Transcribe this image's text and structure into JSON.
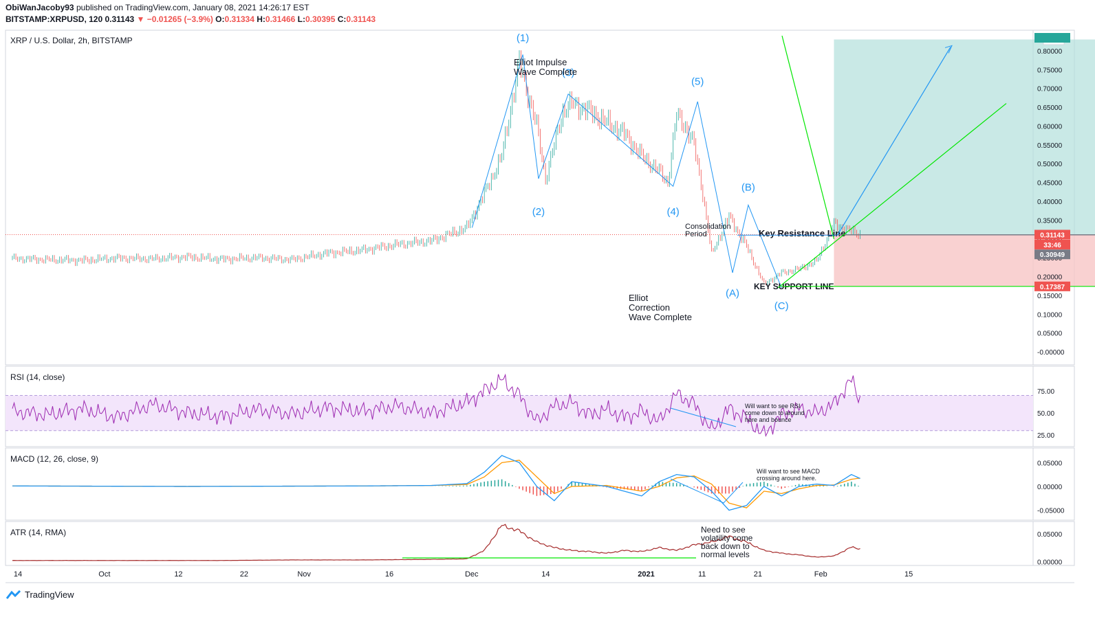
{
  "header": {
    "author": "ObiWanJacoby93",
    "published_text": "published on TradingView.com, January 08, 2021 14:26:17 EST",
    "symbol": "BITSTAMP:XRPUSD, 120",
    "last": "0.31143",
    "change": "▼ −0.01265 (−3.9%)",
    "o_label": "O:",
    "o": "0.31334",
    "h_label": "H:",
    "h": "0.31466",
    "l_label": "L:",
    "l": "0.30395",
    "c_label": "C:",
    "c": "0.31143"
  },
  "brand": {
    "name": "TradingView",
    "icon": "tradingview-logo-icon"
  },
  "colors": {
    "candle_up": "#26a69a",
    "candle_down": "#ef5350",
    "wave": "#2196f3",
    "green_line": "#00e600",
    "target_zone": "#b2dfdb",
    "stop_zone": "#f8c6c6",
    "rsi": "#9c27b0",
    "rsi_band": "#f3e5fb",
    "macd": "#2196f3",
    "signal": "#ff9800",
    "atr": "#a52a2a"
  },
  "time_axis": [
    "14",
    "Oct",
    "12",
    "22",
    "Nov",
    "16",
    "Dec",
    "14",
    "2021",
    "11",
    "21",
    "Feb",
    "15"
  ],
  "chart_data": [
    {
      "type": "line",
      "title": "XRP / U.S. Dollar, 2h, BITSTAMP",
      "y_unit": "USD",
      "ylim": [
        -0.02,
        0.84
      ],
      "y_ticks": [
        "0.80000",
        "0.75000",
        "0.70000",
        "0.65000",
        "0.60000",
        "0.55000",
        "0.50000",
        "0.45000",
        "0.40000",
        "0.35000",
        "0.30000",
        "0.25000",
        "0.20000",
        "0.15000",
        "0.10000",
        "0.05000",
        "-0.00000"
      ],
      "x_index": [
        0,
        20,
        40,
        60,
        80,
        100,
        120,
        140,
        160,
        180,
        200,
        220,
        240,
        260,
        270,
        280,
        290,
        300,
        305,
        310,
        315,
        320,
        330,
        340,
        350,
        360,
        370,
        375,
        380,
        385,
        390,
        395,
        400,
        410,
        420,
        430,
        440,
        450,
        460,
        470,
        480,
        486
      ],
      "close": [
        0.248,
        0.245,
        0.243,
        0.249,
        0.247,
        0.252,
        0.246,
        0.25,
        0.245,
        0.262,
        0.27,
        0.285,
        0.295,
        0.33,
        0.42,
        0.52,
        0.77,
        0.6,
        0.46,
        0.55,
        0.64,
        0.66,
        0.64,
        0.61,
        0.58,
        0.52,
        0.48,
        0.45,
        0.63,
        0.6,
        0.55,
        0.42,
        0.26,
        0.36,
        0.28,
        0.18,
        0.21,
        0.22,
        0.24,
        0.34,
        0.32,
        0.311
      ],
      "price_labels": [
        "0.31143",
        "33:46",
        "0.30949",
        "0.17387"
      ],
      "wave_labels": [
        "(1)",
        "(2)",
        "(3)",
        "(4)",
        "(5)",
        "(A)",
        "(B)",
        "(C)"
      ],
      "annotations": {
        "impulse": [
          "Elliot Impulse",
          "Wave Complete"
        ],
        "correction": [
          "Elliot",
          "Correction",
          "Wave Complete"
        ],
        "consolidation": [
          "Consolidation",
          "Period"
        ],
        "resistance": "Key Resistance Line",
        "support": "KEY SUPPORT LINE"
      },
      "levels": {
        "resistance": 0.311,
        "support": 0.17387,
        "target_top": 0.83
      }
    },
    {
      "type": "line",
      "title": "RSI (14, close)",
      "ylim": [
        15,
        100
      ],
      "y_ticks": [
        "75.00",
        "50.00",
        "25.00"
      ],
      "band": [
        30,
        70
      ],
      "x_index": [
        0,
        20,
        40,
        60,
        80,
        100,
        120,
        140,
        160,
        180,
        200,
        220,
        240,
        260,
        270,
        280,
        290,
        300,
        310,
        320,
        330,
        340,
        350,
        360,
        370,
        380,
        390,
        400,
        410,
        420,
        430,
        440,
        450,
        460,
        470,
        480,
        486
      ],
      "values": [
        52,
        48,
        55,
        45,
        60,
        50,
        46,
        54,
        49,
        56,
        52,
        58,
        50,
        62,
        75,
        88,
        70,
        40,
        58,
        62,
        48,
        54,
        45,
        52,
        40,
        72,
        60,
        30,
        55,
        44,
        25,
        48,
        55,
        50,
        60,
        88,
        60
      ],
      "annotation": [
        "Will want to see RSI",
        "come down to around",
        "here and bounce"
      ]
    },
    {
      "type": "line",
      "title": "MACD (12, 26, close, 9)",
      "ylim": [
        -0.065,
        0.075
      ],
      "y_ticks": [
        "0.05000",
        "0.00000",
        "-0.05000"
      ],
      "x_index": [
        0,
        100,
        200,
        240,
        260,
        270,
        280,
        290,
        300,
        310,
        320,
        340,
        360,
        370,
        380,
        390,
        400,
        410,
        420,
        430,
        440,
        450,
        460,
        470,
        480,
        486
      ],
      "macd": [
        0.001,
        0.0,
        0.001,
        0.002,
        0.006,
        0.03,
        0.065,
        0.05,
        0.0,
        -0.03,
        0.01,
        0.0,
        -0.02,
        0.01,
        0.025,
        0.02,
        -0.01,
        -0.05,
        -0.04,
        0.0,
        -0.02,
        0.0,
        0.005,
        0.002,
        0.025,
        0.015
      ],
      "signal": [
        0.001,
        0.0,
        0.001,
        0.002,
        0.004,
        0.02,
        0.05,
        0.055,
        0.02,
        -0.015,
        0.0,
        0.002,
        -0.01,
        0.0,
        0.018,
        0.022,
        0.005,
        -0.035,
        -0.045,
        -0.01,
        -0.015,
        -0.005,
        0.002,
        0.003,
        0.015,
        0.018
      ],
      "annotation": [
        "Will want to see MACD",
        "crossing around here."
      ]
    },
    {
      "type": "line",
      "title": "ATR (14, RMA)",
      "ylim": [
        -0.002,
        0.067
      ],
      "y_ticks": [
        "0.05000",
        "0.00000"
      ],
      "x_index": [
        0,
        40,
        80,
        120,
        160,
        200,
        240,
        260,
        270,
        280,
        290,
        300,
        310,
        320,
        330,
        340,
        350,
        360,
        370,
        380,
        390,
        400,
        410,
        420,
        430,
        440,
        450,
        460,
        470,
        480,
        486
      ],
      "values": [
        0.002,
        0.002,
        0.002,
        0.002,
        0.003,
        0.003,
        0.004,
        0.005,
        0.02,
        0.065,
        0.055,
        0.035,
        0.025,
        0.02,
        0.018,
        0.015,
        0.02,
        0.018,
        0.025,
        0.02,
        0.03,
        0.035,
        0.045,
        0.035,
        0.02,
        0.015,
        0.012,
        0.008,
        0.01,
        0.026,
        0.022
      ],
      "annotation": [
        "Need to see",
        "volatility come",
        "back down to",
        "normal levels"
      ]
    }
  ]
}
